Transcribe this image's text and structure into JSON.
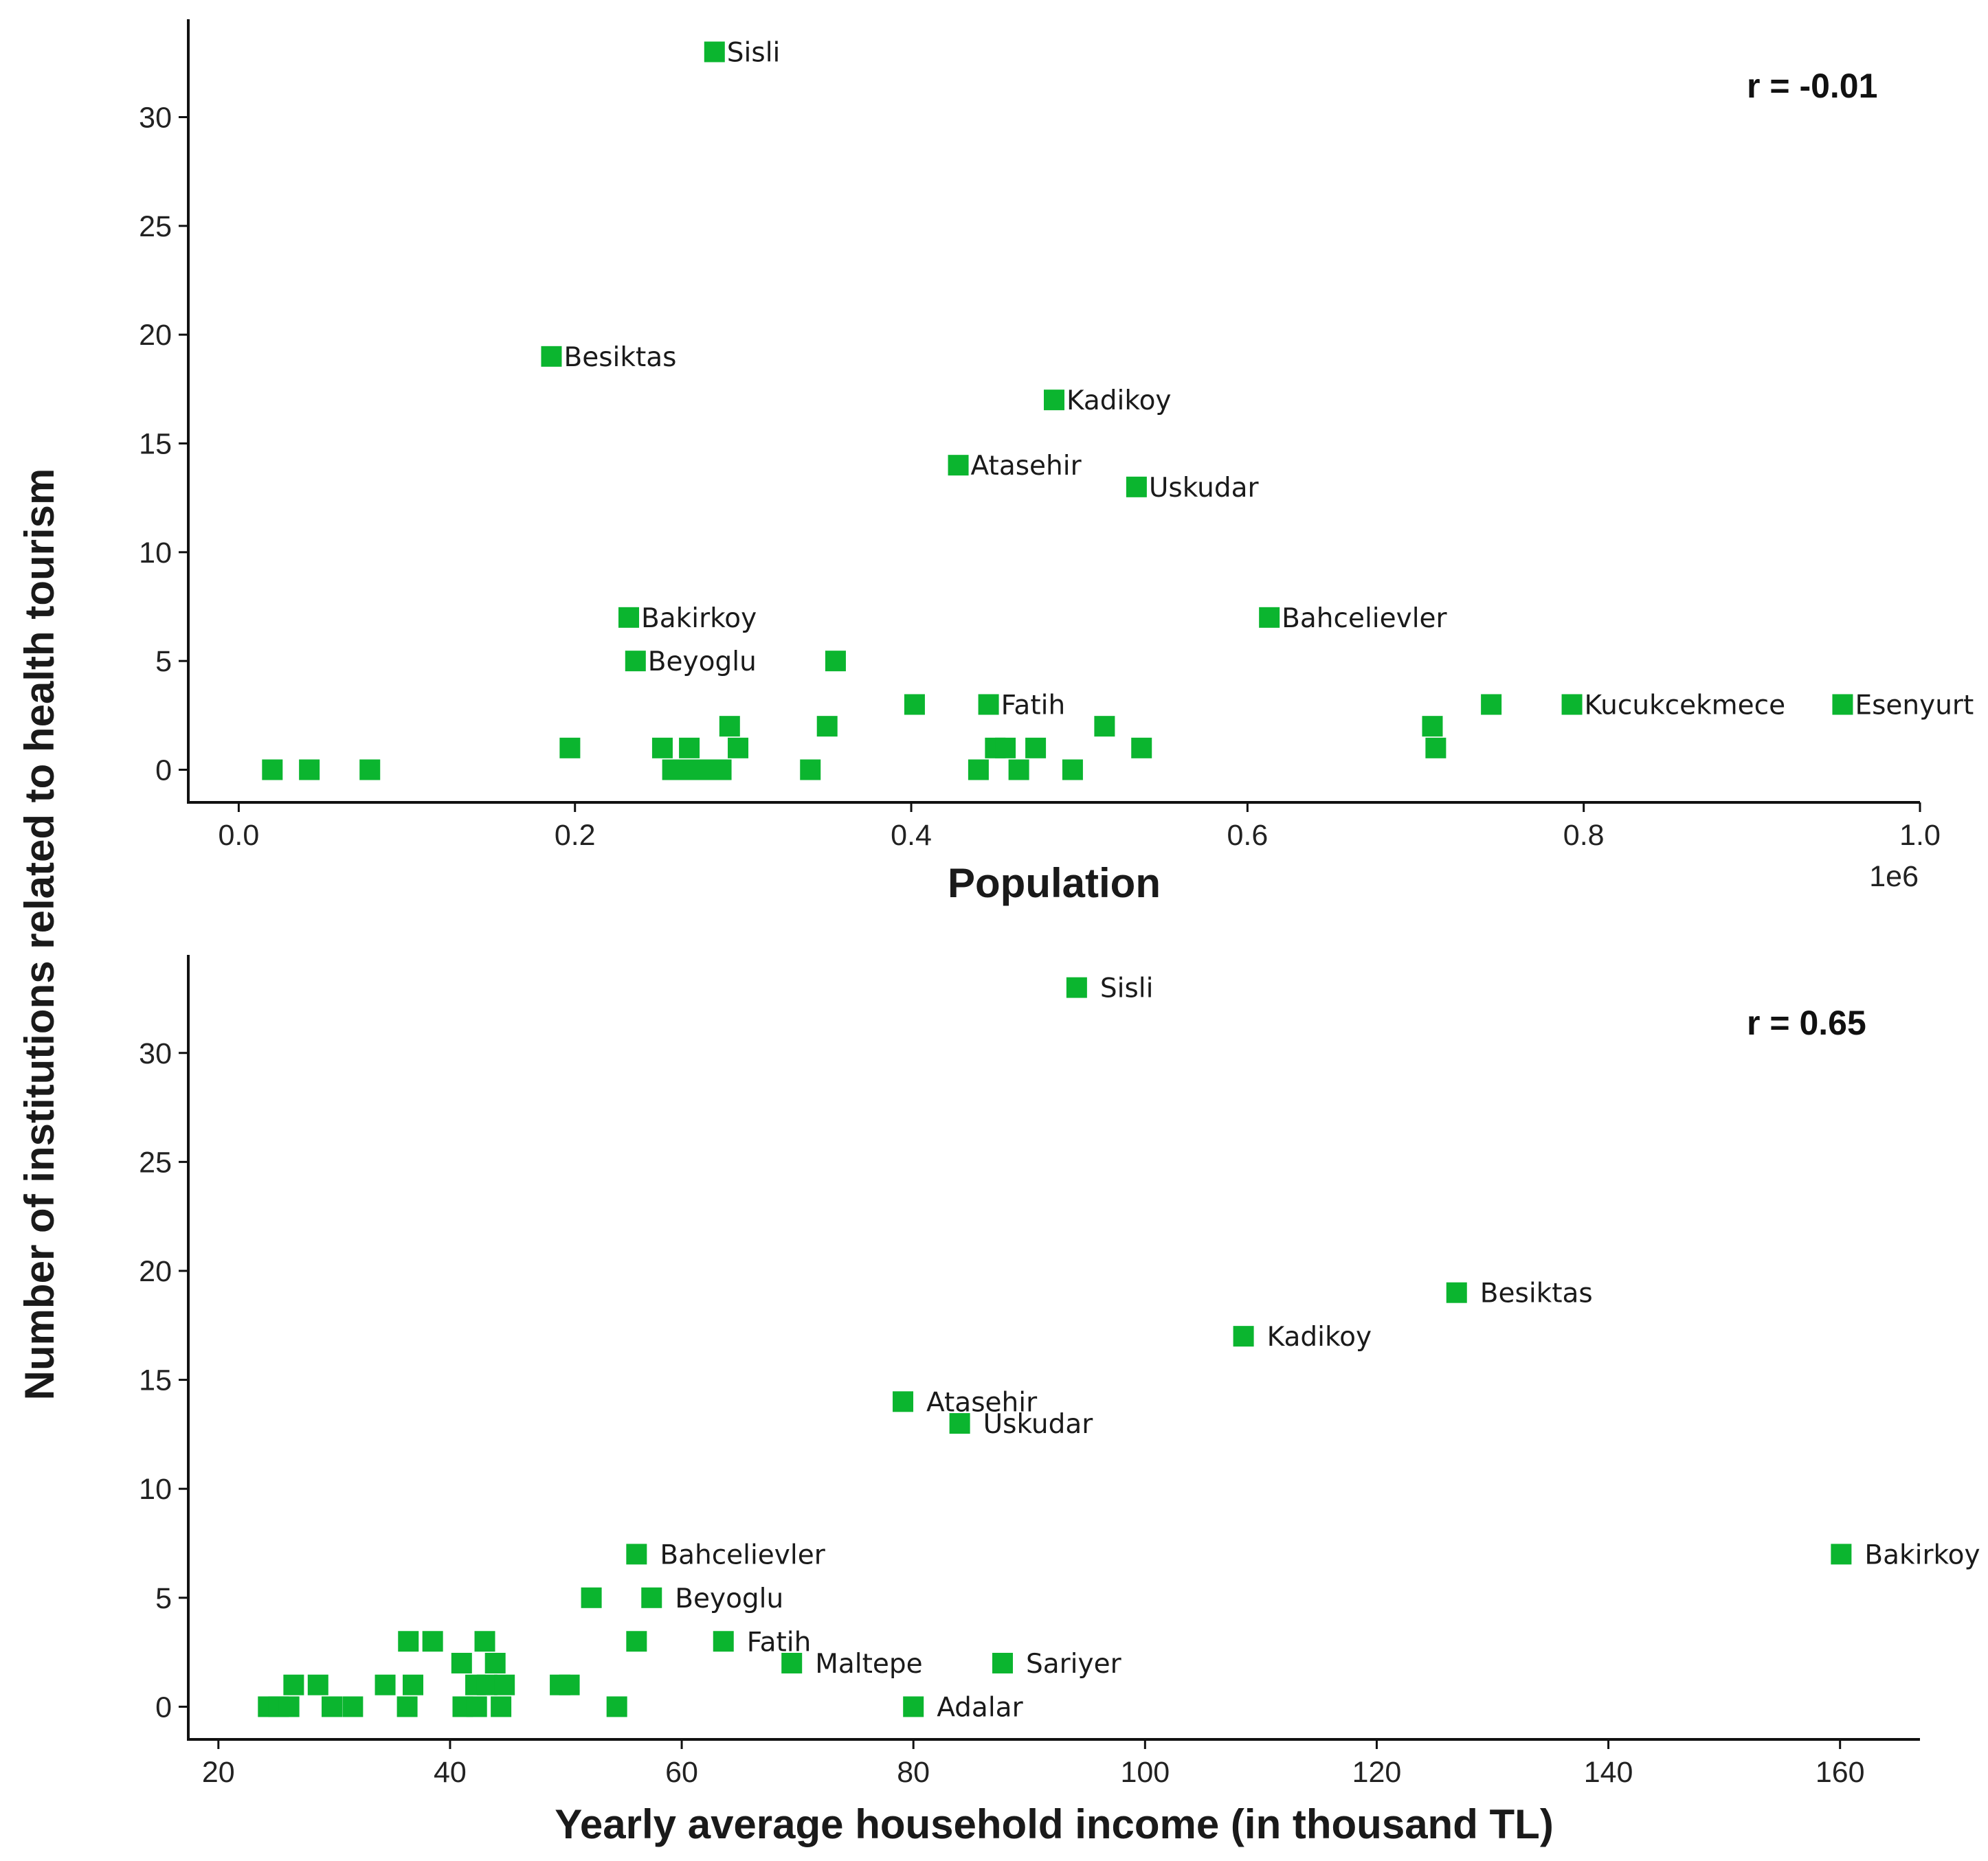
{
  "figure": {
    "ylabel": "Number of institutions related to health tourism",
    "marker_color": "#0bb52f"
  },
  "chart_data": [
    {
      "type": "scatter",
      "xlabel": "Population",
      "x_offset_label": "1e6",
      "correlation": "r = -0.01",
      "xlim": [
        -0.03,
        1.0
      ],
      "ylim": [
        -1.5,
        34.5
      ],
      "xticks": [
        0.0,
        0.2,
        0.4,
        0.6,
        0.8,
        1.0
      ],
      "xtick_labels": [
        "0.0",
        "0.2",
        "0.4",
        "0.6",
        "0.8",
        "1.0"
      ],
      "yticks": [
        0,
        5,
        10,
        15,
        20,
        25,
        30
      ],
      "ytick_labels": [
        "0",
        "5",
        "10",
        "15",
        "20",
        "25",
        "30"
      ],
      "points": [
        {
          "x": 0.283,
          "y": 33,
          "label": "Sisli"
        },
        {
          "x": 0.186,
          "y": 19,
          "label": "Besiktas"
        },
        {
          "x": 0.485,
          "y": 17,
          "label": "Kadikoy"
        },
        {
          "x": 0.428,
          "y": 14,
          "label": "Atasehir"
        },
        {
          "x": 0.534,
          "y": 13,
          "label": "Uskudar"
        },
        {
          "x": 0.232,
          "y": 7,
          "label": "Bakirkoy"
        },
        {
          "x": 0.613,
          "y": 7,
          "label": "Bahcelievler"
        },
        {
          "x": 0.236,
          "y": 5,
          "label": "Beyoglu"
        },
        {
          "x": 0.355,
          "y": 5,
          "label": ""
        },
        {
          "x": 0.402,
          "y": 3,
          "label": ""
        },
        {
          "x": 0.446,
          "y": 3,
          "label": "Fatih"
        },
        {
          "x": 0.745,
          "y": 3,
          "label": ""
        },
        {
          "x": 0.793,
          "y": 3,
          "label": "Kucukcekmece"
        },
        {
          "x": 0.954,
          "y": 3,
          "label": "Esenyurt"
        },
        {
          "x": 0.292,
          "y": 2,
          "label": ""
        },
        {
          "x": 0.35,
          "y": 2,
          "label": ""
        },
        {
          "x": 0.515,
          "y": 2,
          "label": ""
        },
        {
          "x": 0.71,
          "y": 2,
          "label": ""
        },
        {
          "x": 0.197,
          "y": 1,
          "label": ""
        },
        {
          "x": 0.252,
          "y": 1,
          "label": ""
        },
        {
          "x": 0.268,
          "y": 1,
          "label": ""
        },
        {
          "x": 0.297,
          "y": 1,
          "label": ""
        },
        {
          "x": 0.45,
          "y": 1,
          "label": ""
        },
        {
          "x": 0.456,
          "y": 1,
          "label": ""
        },
        {
          "x": 0.474,
          "y": 1,
          "label": ""
        },
        {
          "x": 0.537,
          "y": 1,
          "label": ""
        },
        {
          "x": 0.712,
          "y": 1,
          "label": ""
        },
        {
          "x": 0.02,
          "y": 0,
          "label": ""
        },
        {
          "x": 0.042,
          "y": 0,
          "label": ""
        },
        {
          "x": 0.078,
          "y": 0,
          "label": ""
        },
        {
          "x": 0.258,
          "y": 0,
          "label": ""
        },
        {
          "x": 0.27,
          "y": 0,
          "label": ""
        },
        {
          "x": 0.279,
          "y": 0,
          "label": ""
        },
        {
          "x": 0.287,
          "y": 0,
          "label": ""
        },
        {
          "x": 0.34,
          "y": 0,
          "label": ""
        },
        {
          "x": 0.44,
          "y": 0,
          "label": ""
        },
        {
          "x": 0.464,
          "y": 0,
          "label": ""
        },
        {
          "x": 0.496,
          "y": 0,
          "label": ""
        }
      ]
    },
    {
      "type": "scatter",
      "xlabel": "Yearly average household income (in thousand TL)",
      "correlation": "r = 0.65",
      "xlim": [
        17.4,
        166.9
      ],
      "ylim": [
        -1.5,
        34.5
      ],
      "xticks": [
        20,
        40,
        60,
        80,
        100,
        120,
        140,
        160
      ],
      "xtick_labels": [
        "20",
        "40",
        "60",
        "80",
        "100",
        "120",
        "140",
        "160"
      ],
      "yticks": [
        0,
        5,
        10,
        15,
        20,
        25,
        30
      ],
      "ytick_labels": [
        "0",
        "5",
        "10",
        "15",
        "20",
        "25",
        "30"
      ],
      "points": [
        {
          "x": 94.1,
          "y": 33,
          "label": "Sisli"
        },
        {
          "x": 126.9,
          "y": 19,
          "label": "Besiktas"
        },
        {
          "x": 108.5,
          "y": 17,
          "label": "Kadikoy"
        },
        {
          "x": 79.1,
          "y": 14,
          "label": "Atasehir"
        },
        {
          "x": 84.0,
          "y": 13,
          "label": "Uskudar"
        },
        {
          "x": 56.1,
          "y": 7,
          "label": "Bahcelievler"
        },
        {
          "x": 160.1,
          "y": 7,
          "label": "Bakirkoy"
        },
        {
          "x": 52.2,
          "y": 5,
          "label": ""
        },
        {
          "x": 57.4,
          "y": 5,
          "label": "Beyoglu"
        },
        {
          "x": 36.4,
          "y": 3,
          "label": ""
        },
        {
          "x": 38.5,
          "y": 3,
          "label": ""
        },
        {
          "x": 43.0,
          "y": 3,
          "label": ""
        },
        {
          "x": 56.1,
          "y": 3,
          "label": ""
        },
        {
          "x": 63.6,
          "y": 3,
          "label": "Fatih"
        },
        {
          "x": 41.0,
          "y": 2,
          "label": ""
        },
        {
          "x": 43.9,
          "y": 2,
          "label": ""
        },
        {
          "x": 69.5,
          "y": 2,
          "label": "Maltepe"
        },
        {
          "x": 87.7,
          "y": 2,
          "label": "Sariyer"
        },
        {
          "x": 26.5,
          "y": 1,
          "label": ""
        },
        {
          "x": 28.6,
          "y": 1,
          "label": ""
        },
        {
          "x": 34.4,
          "y": 1,
          "label": ""
        },
        {
          "x": 36.8,
          "y": 1,
          "label": ""
        },
        {
          "x": 42.2,
          "y": 1,
          "label": ""
        },
        {
          "x": 43.2,
          "y": 1,
          "label": ""
        },
        {
          "x": 44.7,
          "y": 1,
          "label": ""
        },
        {
          "x": 49.5,
          "y": 1,
          "label": ""
        },
        {
          "x": 50.3,
          "y": 1,
          "label": ""
        },
        {
          "x": 24.3,
          "y": 0,
          "label": ""
        },
        {
          "x": 25.2,
          "y": 0,
          "label": ""
        },
        {
          "x": 26.1,
          "y": 0,
          "label": ""
        },
        {
          "x": 29.8,
          "y": 0,
          "label": ""
        },
        {
          "x": 31.6,
          "y": 0,
          "label": ""
        },
        {
          "x": 36.3,
          "y": 0,
          "label": ""
        },
        {
          "x": 41.1,
          "y": 0,
          "label": ""
        },
        {
          "x": 42.3,
          "y": 0,
          "label": ""
        },
        {
          "x": 44.4,
          "y": 0,
          "label": ""
        },
        {
          "x": 54.4,
          "y": 0,
          "label": ""
        },
        {
          "x": 80.0,
          "y": 0,
          "label": "Adalar"
        }
      ]
    }
  ]
}
